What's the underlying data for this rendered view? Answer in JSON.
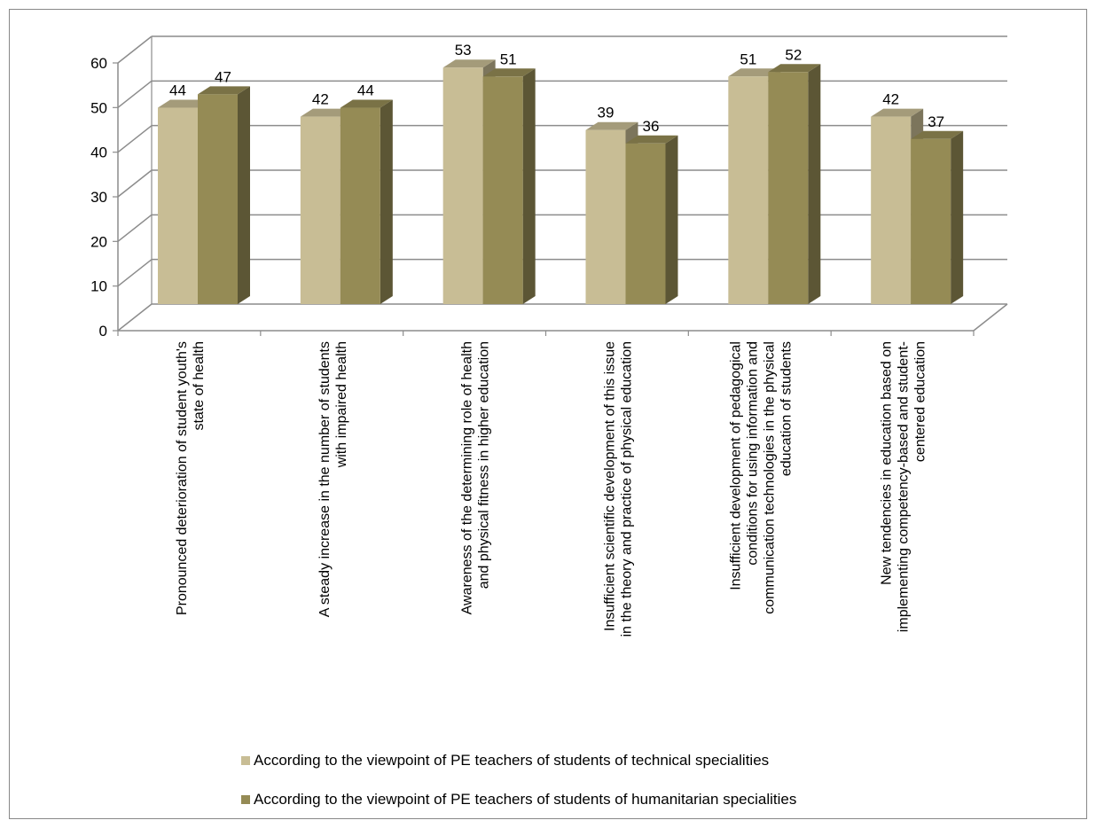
{
  "chart_data": {
    "type": "bar",
    "categories": [
      [
        "Pronounced deterioration of student youth's",
        "state of health"
      ],
      [
        "A steady increase in the number of students",
        "with impaired health"
      ],
      [
        "Awareness of the determining role of health",
        "and physical fitness in higher education"
      ],
      [
        "Insufficient scientific development of this issue",
        "in the theory and practice of physical education"
      ],
      [
        "Insufficient development of pedagogical",
        "conditions for using information and",
        "communication technologies in the physical",
        "education of students"
      ],
      [
        "New tendencies in education based on",
        "implementing competency-based and student-",
        "centered education"
      ]
    ],
    "series": [
      {
        "name": "According to the viewpoint of PE teachers of students of technical specialities",
        "values": [
          44,
          42,
          53,
          39,
          51,
          42
        ],
        "color": "#c8bd95"
      },
      {
        "name": "According to the viewpoint of PE teachers of students of humanitarian specialities",
        "values": [
          47,
          44,
          51,
          36,
          52,
          37
        ],
        "color": "#958b55"
      }
    ],
    "ylim": [
      0,
      60
    ],
    "yticks": [
      "0",
      "10",
      "20",
      "30",
      "40",
      "50",
      "60"
    ],
    "grid": true,
    "legend_position": "bottom",
    "style": "3d"
  }
}
